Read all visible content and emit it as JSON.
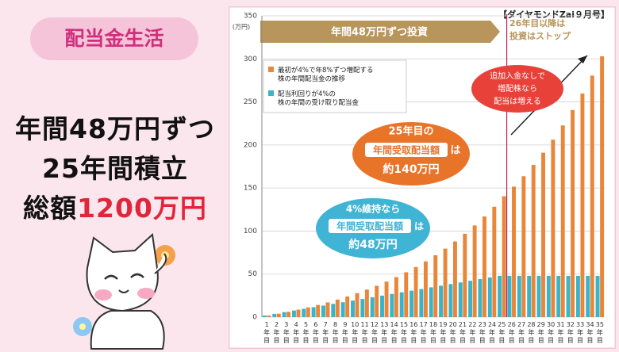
{
  "slide": {
    "tag": "配当金生活",
    "headline": [
      "年間48万円ずつ",
      "25年間積立"
    ],
    "total_prefix": "総額",
    "total_amount": "1200万円"
  },
  "chart_data": {
    "type": "bar",
    "source": "【ダイヤモンドZai９月号】",
    "y_unit": "(万円)",
    "banner": "年間48万円ずつ投資",
    "stop_note": [
      "26年目以降は",
      "投資はストップ"
    ],
    "categories": [
      "1年目",
      "2年目",
      "3年目",
      "4年目",
      "5年目",
      "6年目",
      "7年目",
      "8年目",
      "9年目",
      "10年目",
      "11年目",
      "12年目",
      "13年目",
      "14年目",
      "15年目",
      "16年目",
      "17年目",
      "18年目",
      "19年目",
      "20年目",
      "21年目",
      "22年目",
      "23年目",
      "24年目",
      "25年目",
      "26年目",
      "27年目",
      "28年目",
      "29年目",
      "30年目",
      "31年目",
      "32年目",
      "33年目",
      "34年目",
      "35年目"
    ],
    "series": [
      {
        "name": "最初が4%で年8%ずつ増配する\n株の年間配当金の推移",
        "color": "#e8873a",
        "values": [
          1.9,
          4.0,
          6.2,
          8.7,
          11.3,
          14.1,
          17.1,
          20.4,
          24.0,
          27.8,
          32.0,
          36.4,
          41.3,
          46.5,
          52.1,
          58.2,
          64.8,
          71.9,
          79.6,
          87.9,
          96.8,
          106.5,
          116.9,
          128.2,
          140.4,
          151.6,
          163.7,
          176.8,
          191.0,
          206.2,
          222.7,
          240.6,
          259.8,
          280.6,
          303.0
        ]
      },
      {
        "name": "配当利回りが4%の\n株の年間の受け取り配当金",
        "color": "#3bb3c9",
        "values": [
          1.9,
          3.8,
          5.8,
          7.7,
          9.6,
          11.5,
          13.4,
          15.4,
          17.3,
          19.2,
          21.1,
          23.0,
          25.0,
          26.9,
          28.8,
          30.7,
          32.6,
          34.6,
          36.5,
          38.4,
          40.3,
          42.2,
          44.2,
          46.1,
          48,
          48,
          48,
          48,
          48,
          48,
          48,
          48,
          48,
          48,
          48
        ]
      }
    ],
    "ylim": [
      0,
      350
    ],
    "yticks": [
      0,
      50,
      100,
      150,
      200,
      250,
      300,
      350
    ],
    "grid": true,
    "annotations": {
      "growth_note": [
        "追加入金なしで",
        "増配株なら",
        "配当は増える"
      ],
      "orange_callout": {
        "lead": "25年目の",
        "label": "年間受取配当額",
        "suffix": "は",
        "amount": "約140万円"
      },
      "blue_callout": {
        "lead": "4%維持なら",
        "label": "年間受取配当額",
        "suffix": "は",
        "amount": "約48万円"
      }
    }
  }
}
